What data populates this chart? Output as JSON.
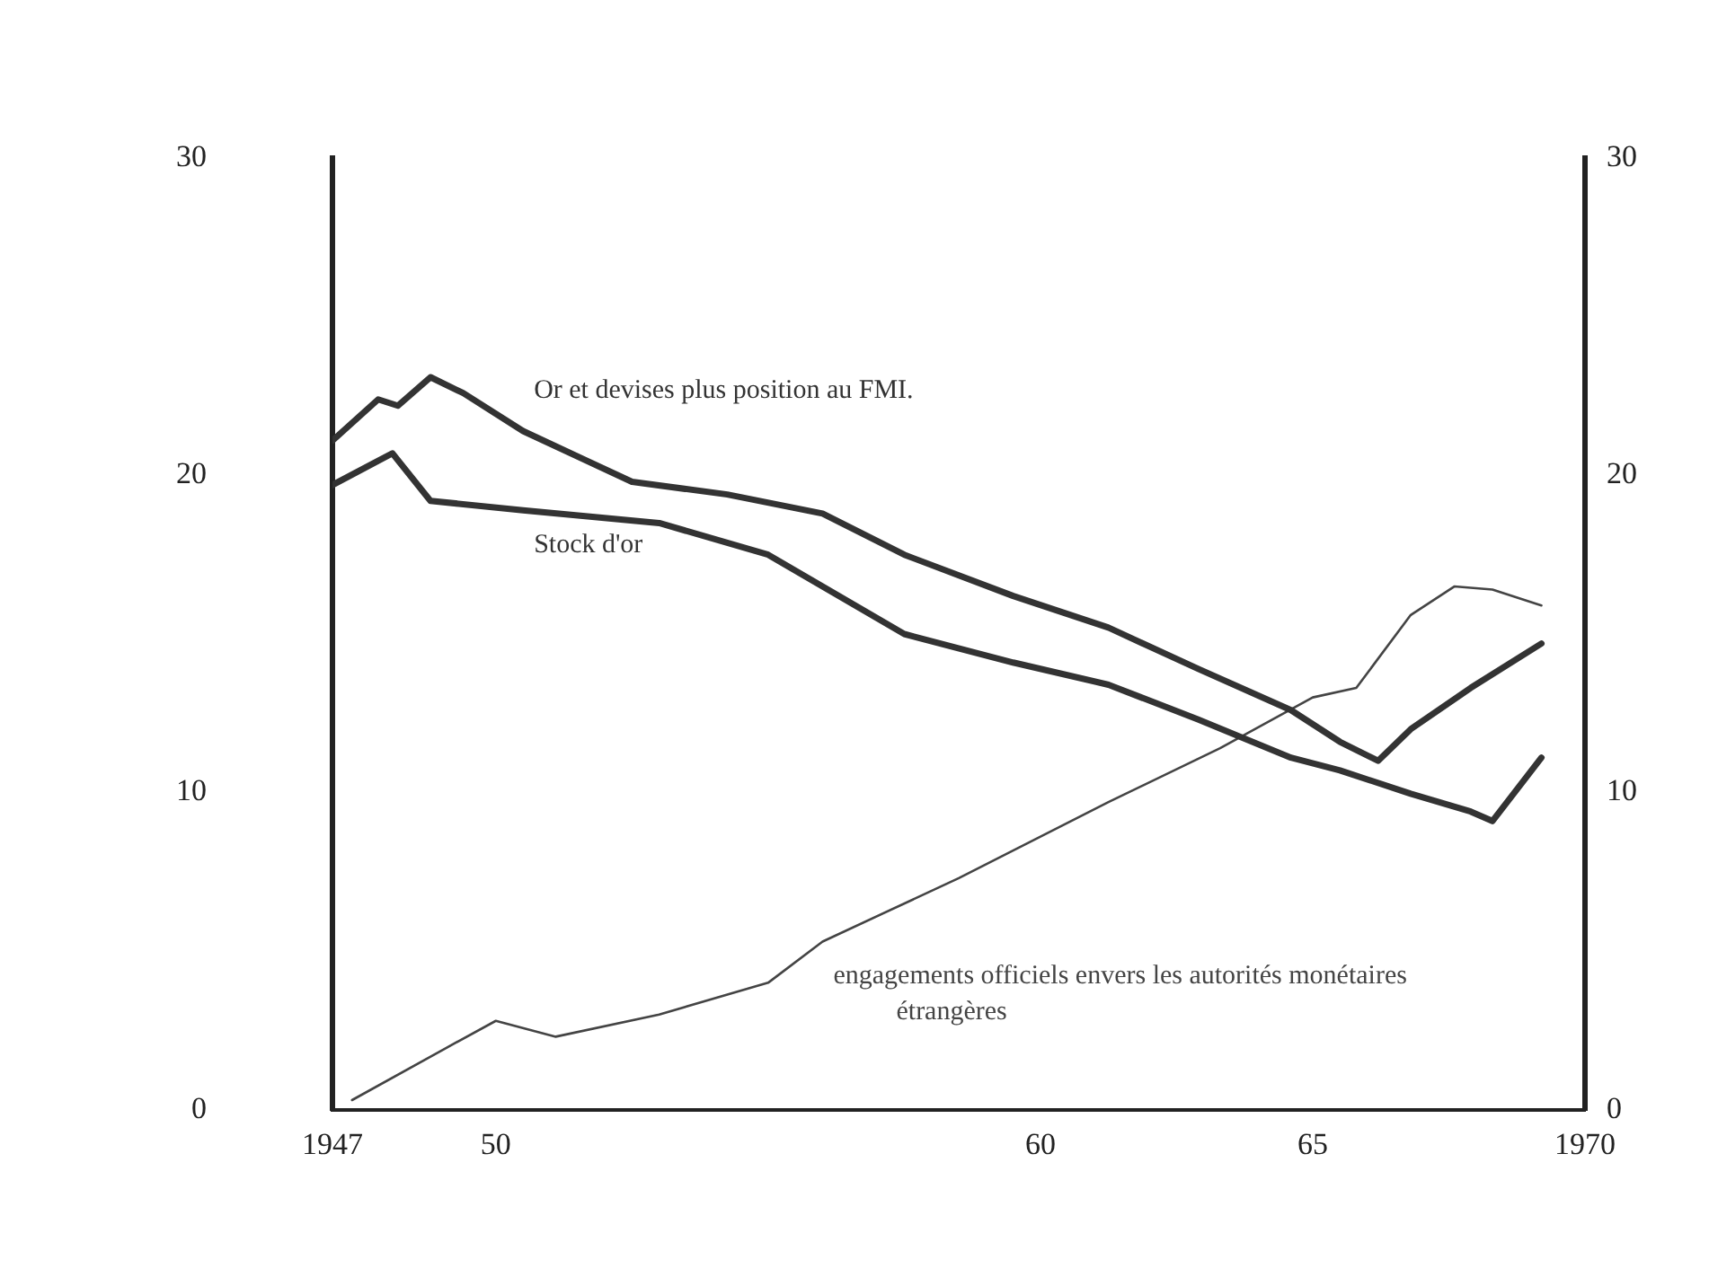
{
  "chart_data": {
    "type": "line",
    "xlim": [
      1947,
      1970
    ],
    "xticks": [
      1947,
      {
        "value": 1950,
        "label": "50"
      },
      {
        "value": 1960,
        "label": "60"
      },
      {
        "value": 1965,
        "label": "65"
      },
      1970
    ],
    "ylim": [
      0,
      30
    ],
    "yticks": [
      0,
      10,
      20,
      30
    ],
    "y2lim": [
      0,
      30
    ],
    "y2ticks": [
      0,
      10,
      20,
      30
    ],
    "grid": false,
    "legend": false,
    "marker": "none",
    "line_style": "solid",
    "series": [
      {
        "name": "Or et devises plus position au FMI.",
        "color": "#333333",
        "x": [
          1947,
          1947.84,
          1948.2,
          1948.8,
          1949.4,
          1950.5,
          1952.5,
          1954.25,
          1956,
          1957.5,
          1959.5,
          1961.25,
          1962.9,
          1964.6,
          1965.5,
          1966.2,
          1966.8,
          1967.9,
          1969.2
        ],
        "values": [
          21.1,
          22.4,
          22.2,
          23.1,
          22.6,
          21.4,
          19.8,
          19.4,
          18.8,
          17.5,
          16.2,
          15.2,
          13.9,
          12.6,
          11.6,
          11.0,
          12.0,
          13.3,
          14.7
        ]
      },
      {
        "name": "Stock d'or",
        "color": "#333333",
        "x": [
          1947,
          1948.1,
          1948.8,
          1950.5,
          1953,
          1955,
          1957.5,
          1959.5,
          1961.25,
          1962.9,
          1964.6,
          1965.5,
          1966.8,
          1967.9,
          1968.3,
          1969.2
        ],
        "values": [
          19.7,
          20.7,
          19.2,
          18.9,
          18.5,
          17.5,
          15.0,
          14.1,
          13.4,
          12.3,
          11.1,
          10.7,
          9.96,
          9.4,
          9.1,
          11.1
        ]
      },
      {
        "name": "engagements officiels envers les autorités monétaires étrangères",
        "color": "#444444",
        "x": [
          1947.36,
          1949.04,
          1950,
          1951.1,
          1953,
          1955,
          1956,
          1958.5,
          1961.25,
          1963.3,
          1965,
          1965.8,
          1966.8,
          1967.6,
          1968.3,
          1969.2
        ],
        "values": [
          0.3,
          1.9,
          2.8,
          2.3,
          3.0,
          4.0,
          5.3,
          7.3,
          9.7,
          11.4,
          13.0,
          13.3,
          15.6,
          16.5,
          16.4,
          15.9
        ]
      }
    ]
  }
}
